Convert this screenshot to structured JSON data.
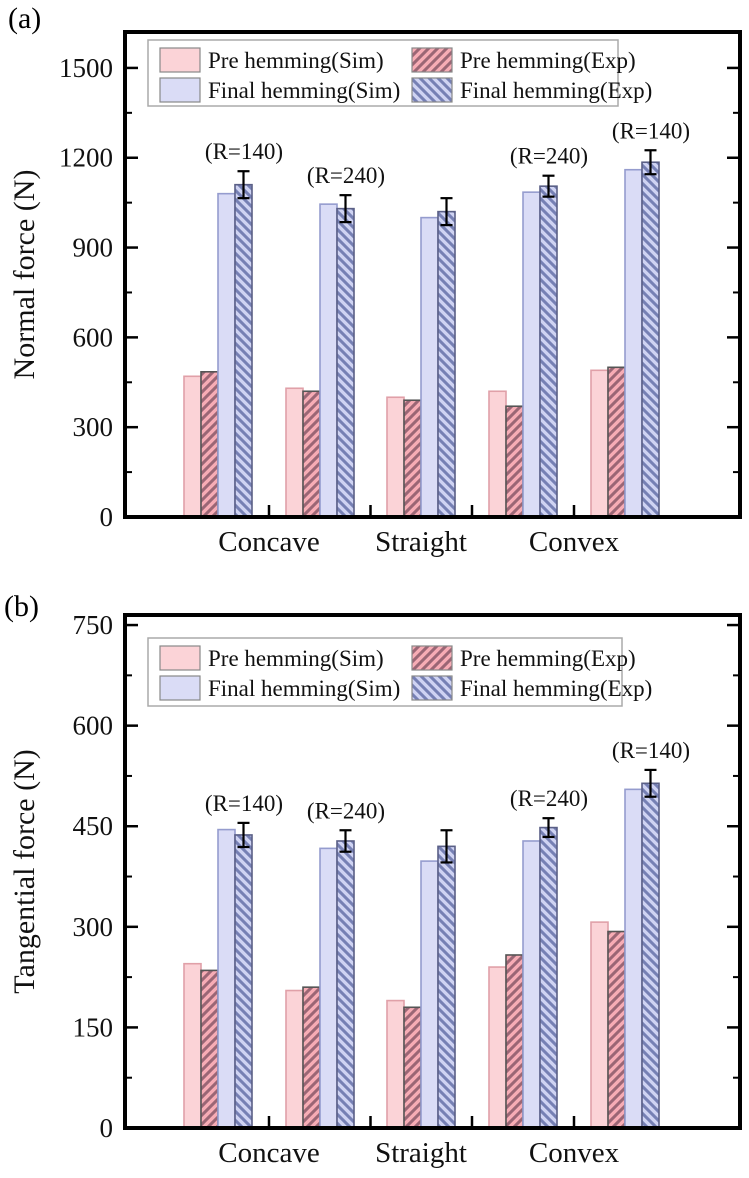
{
  "colors": {
    "pre_sim_fill": "#fbd3d7",
    "pre_sim_stroke": "#e0a0a8",
    "pre_exp_fill": "#f7acb5",
    "pre_exp_hatch": "#9b6675",
    "pre_exp_stroke": "#555555",
    "final_sim_fill": "#dadcf6",
    "final_sim_stroke": "#959cce",
    "final_exp_fill": "#cfd3f2",
    "final_exp_hatch": "#7680b4",
    "final_exp_stroke": "#5a5f86",
    "axis": "#000000",
    "error_bar": "#000000",
    "legend_border": "#aaaaaa"
  },
  "legend": {
    "entries": [
      {
        "label": "Pre hemming(Sim)",
        "style": "pre_sim"
      },
      {
        "label": "Pre hemming(Exp)",
        "style": "pre_exp"
      },
      {
        "label": "Final hemming(Sim)",
        "style": "final_sim"
      },
      {
        "label": "Final hemming(Exp)",
        "style": "final_exp"
      }
    ]
  },
  "chart_data": [
    {
      "id": "a",
      "type": "bar",
      "panel_label": "(a)",
      "ylabel": "Normal force (N)",
      "ylim": [
        0,
        1620
      ],
      "yticks": [
        0,
        300,
        600,
        900,
        1200,
        1500
      ],
      "yminor": 150,
      "grid": false,
      "legend_position": "top-left-inside",
      "categories": [
        "Concave",
        "Straight",
        "Convex"
      ],
      "groups": [
        {
          "category": "Concave",
          "annotation": "(R=140)"
        },
        {
          "category": "Concave",
          "annotation": "(R=240)"
        },
        {
          "category": "Straight",
          "annotation": ""
        },
        {
          "category": "Convex",
          "annotation": "(R=240)"
        },
        {
          "category": "Convex",
          "annotation": "(R=140)"
        }
      ],
      "series": [
        {
          "name": "Pre hemming(Sim)",
          "style": "pre_sim",
          "values": [
            470,
            430,
            400,
            420,
            490
          ]
        },
        {
          "name": "Pre hemming(Exp)",
          "style": "pre_exp",
          "values": [
            485,
            420,
            390,
            370,
            500
          ]
        },
        {
          "name": "Final hemming(Sim)",
          "style": "final_sim",
          "values": [
            1080,
            1045,
            1000,
            1085,
            1160
          ]
        },
        {
          "name": "Final hemming(Exp)",
          "style": "final_exp",
          "values": [
            1110,
            1030,
            1020,
            1105,
            1185
          ],
          "errors": [
            45,
            45,
            45,
            35,
            40
          ]
        }
      ]
    },
    {
      "id": "b",
      "type": "bar",
      "panel_label": "(b)",
      "ylabel": "Tangential force (N)",
      "ylim": [
        0,
        765
      ],
      "yticks": [
        0,
        150,
        300,
        450,
        600,
        750
      ],
      "yminor": 75,
      "grid": false,
      "legend_position": "top-left-inside",
      "categories": [
        "Concave",
        "Straight",
        "Convex"
      ],
      "groups": [
        {
          "category": "Concave",
          "annotation": "(R=140)"
        },
        {
          "category": "Concave",
          "annotation": "(R=240)"
        },
        {
          "category": "Straight",
          "annotation": ""
        },
        {
          "category": "Convex",
          "annotation": "(R=240)"
        },
        {
          "category": "Convex",
          "annotation": "(R=140)"
        }
      ],
      "series": [
        {
          "name": "Pre hemming(Sim)",
          "style": "pre_sim",
          "values": [
            245,
            205,
            190,
            240,
            307
          ]
        },
        {
          "name": "Pre hemming(Exp)",
          "style": "pre_exp",
          "values": [
            235,
            210,
            180,
            258,
            293
          ]
        },
        {
          "name": "Final hemming(Sim)",
          "style": "final_sim",
          "values": [
            445,
            417,
            398,
            428,
            505
          ]
        },
        {
          "name": "Final hemming(Exp)",
          "style": "final_exp",
          "values": [
            437,
            428,
            420,
            448,
            514
          ],
          "errors": [
            18,
            16,
            24,
            14,
            20
          ]
        }
      ]
    }
  ]
}
